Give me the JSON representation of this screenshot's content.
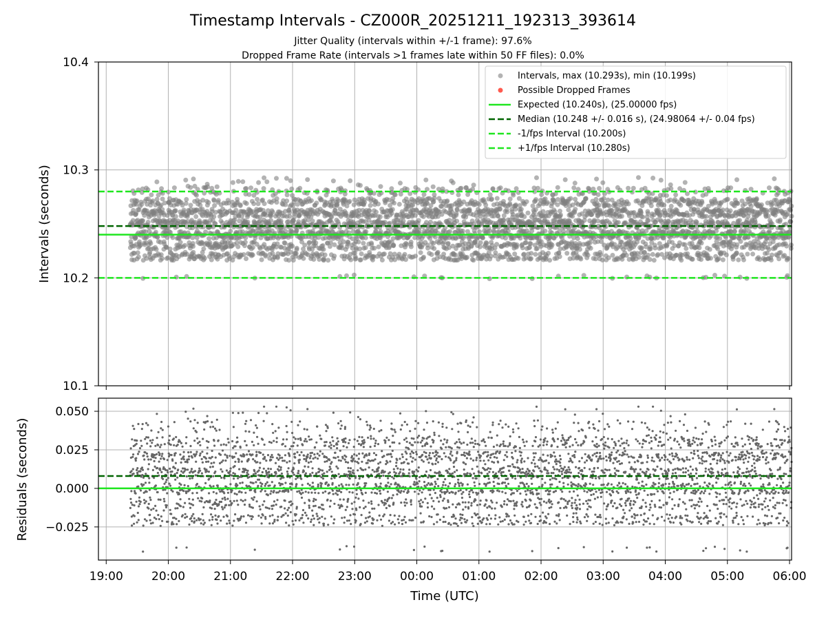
{
  "title": "Timestamp Intervals - CZ000R_20251211_192313_393614",
  "subtitle_1": "Jitter Quality (intervals within +/-1 frame): 97.6%",
  "subtitle_2": "Dropped Frame Rate (intervals >1 frames late within 50 FF files): 0.0%",
  "legend": {
    "intervals": "Intervals, max (10.293s), min (10.199s)",
    "dropped": "Possible Dropped Frames",
    "expected": "Expected (10.240s), (25.00000 fps)",
    "median": "Median (10.248 +/- 0.016 s), (24.98064 +/- 0.04 fps)",
    "minus": "-1/fps Interval (10.200s)",
    "plus": "+1/fps Interval (10.280s)"
  },
  "colors": {
    "points": "#808080",
    "dropped": "#ff5a4f",
    "expected": "#1ee61e",
    "median": "#006400",
    "bounds": "#1ee61e",
    "grid": "#b0b0b0"
  },
  "chart_data": [
    {
      "type": "scatter",
      "ylabel": "Intervals (seconds)",
      "ylim": [
        10.1,
        10.4
      ],
      "yticks": [
        "10.1",
        "10.2",
        "10.3",
        "10.4"
      ],
      "x_range_hours": [
        18.875,
        30.033
      ],
      "data_start_hour": 19.386,
      "series": [
        {
          "name": "Intervals",
          "count": 3870,
          "max": 10.293,
          "min": 10.199,
          "median": 10.248,
          "spread": 0.016
        },
        {
          "name": "Possible Dropped Frames",
          "count": 0
        }
      ],
      "hlines": [
        {
          "name": "Expected",
          "y": 10.24,
          "style": "solid"
        },
        {
          "name": "Median",
          "y": 10.248,
          "style": "dashed"
        },
        {
          "name": "-1/fps Interval",
          "y": 10.2,
          "style": "dashed"
        },
        {
          "name": "+1/fps Interval",
          "y": 10.28,
          "style": "dashed"
        }
      ],
      "legend_position": "top-right"
    },
    {
      "type": "scatter",
      "ylabel": "Residuals (seconds)",
      "xlabel": "Time (UTC)",
      "ylim": [
        -0.0465,
        0.0585
      ],
      "yticks": [
        {
          "v": 0.05,
          "label": "0.050"
        },
        {
          "v": 0.025,
          "label": "0.025"
        },
        {
          "v": 0.0,
          "label": "0.000"
        },
        {
          "v": -0.025,
          "label": "−0.025"
        }
      ],
      "xticks": [
        {
          "h": 19,
          "label": "19:00"
        },
        {
          "h": 20,
          "label": "20:00"
        },
        {
          "h": 21,
          "label": "21:00"
        },
        {
          "h": 22,
          "label": "22:00"
        },
        {
          "h": 23,
          "label": "23:00"
        },
        {
          "h": 24,
          "label": "00:00"
        },
        {
          "h": 25,
          "label": "01:00"
        },
        {
          "h": 26,
          "label": "02:00"
        },
        {
          "h": 27,
          "label": "03:00"
        },
        {
          "h": 28,
          "label": "04:00"
        },
        {
          "h": 29,
          "label": "05:00"
        },
        {
          "h": 30,
          "label": "06:00"
        }
      ],
      "series": [
        {
          "name": "Residuals",
          "count": 3870,
          "max": 0.053,
          "min": -0.041
        }
      ],
      "hlines": [
        {
          "name": "Zero",
          "y": 0.0,
          "style": "solid"
        },
        {
          "name": "Median offset",
          "y": 0.008,
          "style": "dashed"
        }
      ]
    }
  ]
}
